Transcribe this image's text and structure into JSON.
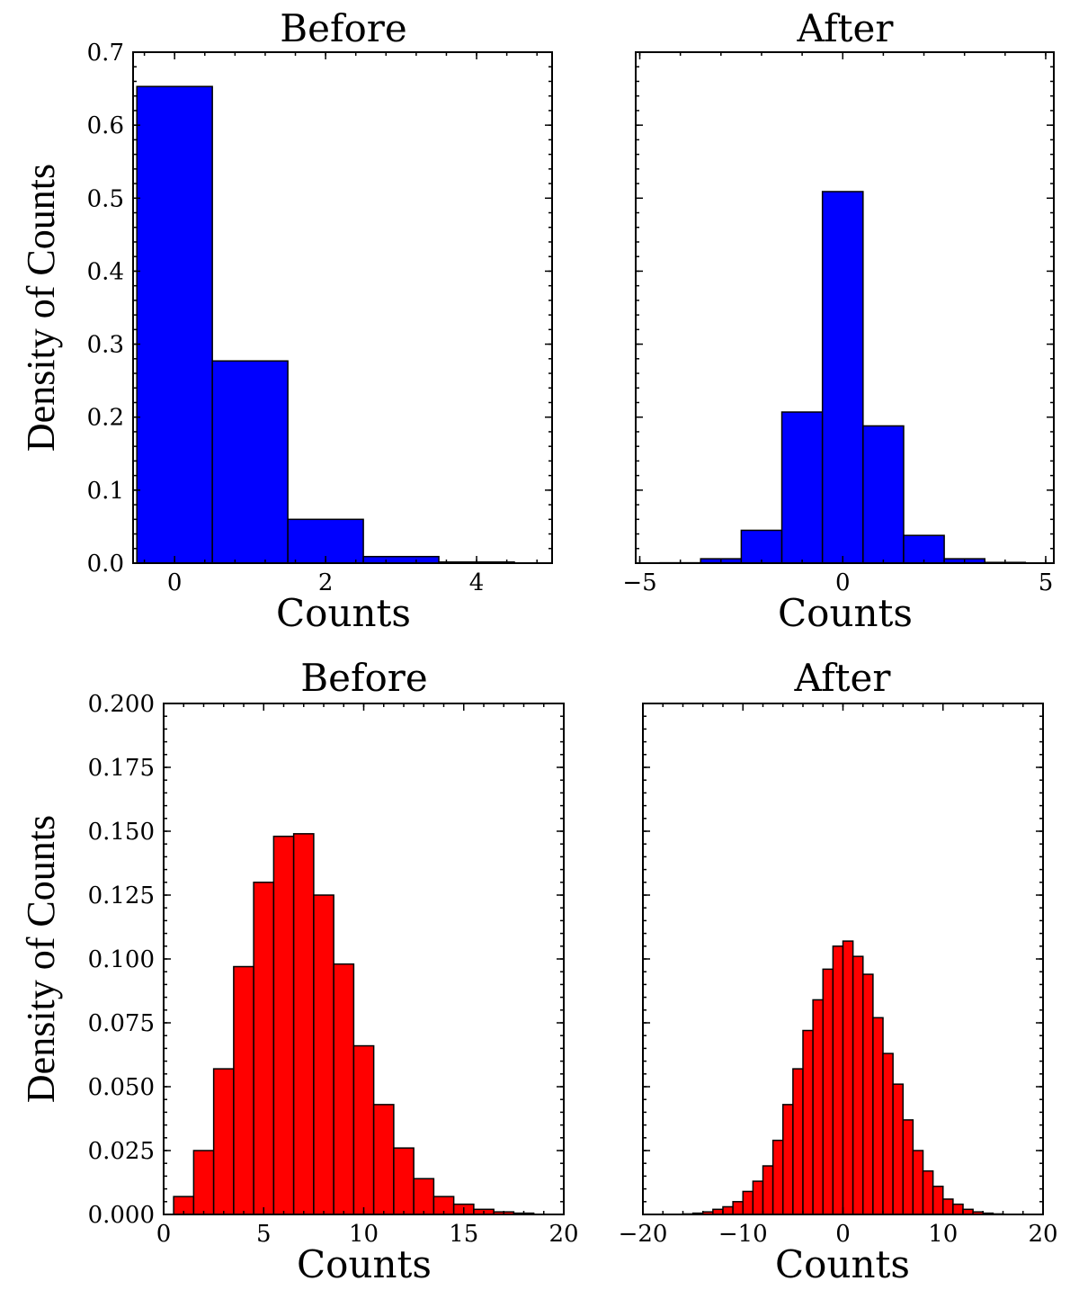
{
  "chart_data": [
    {
      "type": "bar",
      "title": "Before",
      "xlabel": "Counts",
      "ylabel": "Density of Counts",
      "color": "#0000ff",
      "bin_width": 1,
      "bin_starts": [
        -0.5,
        0.5,
        1.5,
        2.5,
        3.5
      ],
      "values": [
        0.653,
        0.277,
        0.06,
        0.009,
        0.0015
      ],
      "xlim": [
        -0.55,
        5.0
      ],
      "ylim": [
        0,
        0.7
      ],
      "xticks": [
        0,
        2,
        4
      ],
      "xtick_labels": [
        "0",
        "2",
        "4"
      ],
      "yticks": [
        0.0,
        0.1,
        0.2,
        0.3,
        0.4,
        0.5,
        0.6,
        0.7
      ],
      "ytick_labels": [
        "0.0",
        "0.1",
        "0.2",
        "0.3",
        "0.4",
        "0.5",
        "0.6",
        "0.7"
      ]
    },
    {
      "type": "bar",
      "title": "After",
      "xlabel": "Counts",
      "ylabel": "",
      "color": "#0000ff",
      "bin_width": 1,
      "bin_starts": [
        -4.5,
        -3.5,
        -2.5,
        -1.5,
        -0.5,
        0.5,
        1.5,
        2.5,
        3.5
      ],
      "values": [
        0.0005,
        0.006,
        0.045,
        0.207,
        0.509,
        0.188,
        0.038,
        0.006,
        0.001
      ],
      "xlim": [
        -5.1,
        5.2
      ],
      "ylim": [
        0,
        0.7
      ],
      "xticks": [
        -5,
        0,
        5
      ],
      "xtick_labels": [
        "−5",
        "0",
        "5"
      ],
      "yticks": [
        0.0,
        0.1,
        0.2,
        0.3,
        0.4,
        0.5,
        0.6,
        0.7
      ],
      "ytick_labels": []
    },
    {
      "type": "bar",
      "title": "Before",
      "xlabel": "Counts",
      "ylabel": "Density of Counts",
      "color": "#ff0000",
      "bin_width": 1,
      "bin_starts": [
        0.5,
        1.5,
        2.5,
        3.5,
        4.5,
        5.5,
        6.5,
        7.5,
        8.5,
        9.5,
        10.5,
        11.5,
        12.5,
        13.5,
        14.5,
        15.5,
        16.5,
        17.5
      ],
      "values": [
        0.007,
        0.025,
        0.057,
        0.097,
        0.13,
        0.148,
        0.149,
        0.125,
        0.098,
        0.066,
        0.043,
        0.026,
        0.014,
        0.007,
        0.004,
        0.002,
        0.001,
        0.0005
      ],
      "xlim": [
        0,
        20
      ],
      "ylim": [
        0,
        0.2
      ],
      "xticks": [
        0,
        5,
        10,
        15,
        20
      ],
      "xtick_labels": [
        "0",
        "5",
        "10",
        "15",
        "20"
      ],
      "yticks": [
        0.0,
        0.025,
        0.05,
        0.075,
        0.1,
        0.125,
        0.15,
        0.175,
        0.2
      ],
      "ytick_labels": [
        "0.000",
        "0.025",
        "0.050",
        "0.075",
        "0.100",
        "0.125",
        "0.150",
        "0.175",
        "0.200"
      ]
    },
    {
      "type": "bar",
      "title": "After",
      "xlabel": "Counts",
      "ylabel": "",
      "color": "#ff0000",
      "bin_width": 1,
      "bin_starts": [
        -16,
        -15,
        -14,
        -13,
        -12,
        -11,
        -10,
        -9,
        -8,
        -7,
        -6,
        -5,
        -4,
        -3,
        -2,
        -1,
        0,
        1,
        2,
        3,
        4,
        5,
        6,
        7,
        8,
        9,
        10,
        11,
        12,
        13,
        14,
        15
      ],
      "values": [
        0.0002,
        0.0005,
        0.001,
        0.002,
        0.003,
        0.005,
        0.009,
        0.013,
        0.019,
        0.029,
        0.043,
        0.057,
        0.072,
        0.084,
        0.096,
        0.105,
        0.107,
        0.101,
        0.094,
        0.077,
        0.063,
        0.051,
        0.037,
        0.025,
        0.017,
        0.011,
        0.006,
        0.004,
        0.002,
        0.001,
        0.0005,
        0.0002
      ],
      "xlim": [
        -20,
        20
      ],
      "ylim": [
        0,
        0.2
      ],
      "xticks": [
        -20,
        -10,
        0,
        10,
        20
      ],
      "xtick_labels": [
        "−20",
        "−10",
        "0",
        "10",
        "20"
      ],
      "yticks": [
        0.0,
        0.025,
        0.05,
        0.075,
        0.1,
        0.125,
        0.15,
        0.175,
        0.2
      ],
      "ytick_labels": []
    }
  ]
}
